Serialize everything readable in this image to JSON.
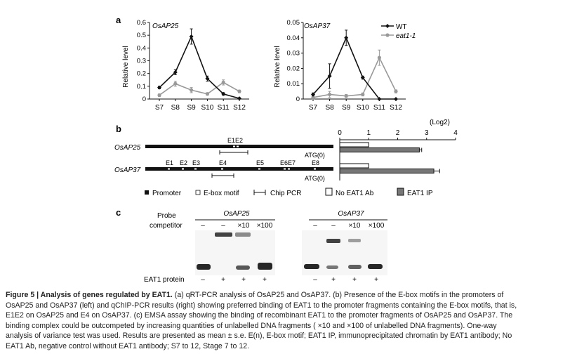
{
  "panel_a": {
    "label": "a",
    "x_categories": [
      "S7",
      "S8",
      "S9",
      "S10",
      "S11",
      "S12"
    ],
    "ylabel": "Relative level",
    "legend": [
      {
        "name": "WT",
        "color": "#111111",
        "marker": "diamond"
      },
      {
        "name": "eat1-1",
        "color": "#999999",
        "marker": "circle"
      }
    ]
  },
  "chart_data": [
    {
      "type": "line",
      "title": "OsAP25",
      "ylabel": "Relative level",
      "categories": [
        "S7",
        "S8",
        "S9",
        "S10",
        "S11",
        "S12"
      ],
      "ylim": [
        0,
        0.6
      ],
      "yticks": [
        "0",
        "0.1",
        "0.2",
        "0.3",
        "0.4",
        "0.5",
        "0.6"
      ],
      "series": [
        {
          "name": "WT",
          "color": "#111111",
          "values": [
            0.09,
            0.21,
            0.49,
            0.16,
            0.04,
            0.005
          ],
          "errors": [
            0.01,
            0.02,
            0.06,
            0.02,
            0.01,
            0.005
          ]
        },
        {
          "name": "eat1-1",
          "color": "#999999",
          "values": [
            0.03,
            0.12,
            0.07,
            0.04,
            0.13,
            0.06
          ],
          "errors": [
            0.01,
            0.02,
            0.02,
            0.01,
            0.02,
            0.01
          ]
        }
      ]
    },
    {
      "type": "line",
      "title": "OsAP37",
      "ylabel": "Relative level",
      "categories": [
        "S7",
        "S8",
        "S9",
        "S10",
        "S11",
        "S12"
      ],
      "ylim": [
        0,
        0.05
      ],
      "yticks": [
        "0",
        "0.01",
        "0.02",
        "0.03",
        "0.04",
        "0.05"
      ],
      "series": [
        {
          "name": "WT",
          "color": "#111111",
          "values": [
            0.003,
            0.015,
            0.04,
            0.014,
            0,
            0
          ],
          "errors": [
            0.001,
            0.008,
            0.005,
            0.001,
            0,
            0
          ]
        },
        {
          "name": "eat1-1",
          "color": "#999999",
          "values": [
            0.001,
            0.003,
            0.002,
            0.003,
            0.027,
            0.005
          ],
          "errors": [
            0.001,
            0.002,
            0.001,
            0.001,
            0.005,
            0.001
          ]
        }
      ]
    },
    {
      "type": "bar",
      "title": "(Log2)",
      "orientation": "horizontal",
      "categories": [
        "OsAP25",
        "OsAP37"
      ],
      "xlim": [
        0,
        4
      ],
      "xticks": [
        "0",
        "1",
        "2",
        "3",
        "4"
      ],
      "series": [
        {
          "name": "No EAT1 Ab",
          "color": "#ffffff",
          "values": [
            1.0,
            1.0
          ]
        },
        {
          "name": "EAT1 IP",
          "color": "#777777",
          "values": [
            2.75,
            3.25
          ],
          "errors": [
            0.08,
            0.2
          ]
        }
      ]
    }
  ],
  "panel_b": {
    "label": "b",
    "genes": [
      {
        "name": "OsAP25",
        "motifs": [
          "E1E2"
        ],
        "atg": "ATG(0)"
      },
      {
        "name": "OsAP37",
        "motifs": [
          "E1",
          "E2",
          "E3",
          "E4",
          "E5",
          "E6E7",
          "E8"
        ],
        "atg": "ATG(0)"
      }
    ],
    "legend": {
      "promoter": "Promoter",
      "ebox": "E-box motif",
      "chip": "Chip PCR",
      "no_ab": "No EAT1 Ab",
      "ip": "EAT1 IP"
    }
  },
  "panel_c": {
    "label": "c",
    "probe_label": "Probe",
    "competitor_label": "competitor",
    "protein_label": "EAT1 protein",
    "gels": [
      {
        "title": "OsAP25",
        "competitor": [
          "–",
          "–",
          "×10",
          "×100"
        ],
        "protein": [
          "–",
          "+",
          "+",
          "+"
        ]
      },
      {
        "title": "OsAP37",
        "competitor": [
          "–",
          "–",
          "×10",
          "×100"
        ],
        "protein": [
          "–",
          "+",
          "+",
          "+"
        ]
      }
    ]
  },
  "caption": {
    "fig_label": "Figure 5 | Analysis of genes regulated by EAT1.",
    "line1": " (a) qRT-PCR analysis of OsAP25 and OsAP37. (b) Presence of the E-box motifs in the promoters of",
    "line2": "OsAP25 and OsAP37 (left) and qChIP-PCR results (right) showing preferred binding of EAT1 to the promoter fragments containing the E-box motifs, that is,",
    "line3": "E1E2 on OsAP25 and E4 on OsAP37. (c) EMSA assay showing the binding of recombinant EAT1 to the promoter fragments of OsAP25 and OsAP37. The",
    "line4": "binding complex could be outcompeted by increasing quantities of unlabelled DNA fragments ( ×10 and ×100 of unlabelled DNA fragments). One-way",
    "line5": "analysis of variance test was used. Results are presented as mean ± s.e. E(n), E-box motif; EAT1 IP, immunoprecipitated chromatin by EAT1 antibody; No",
    "line6": "EAT1 Ab, negative control without EAT1 antibody; S7 to 12, Stage 7 to 12."
  }
}
